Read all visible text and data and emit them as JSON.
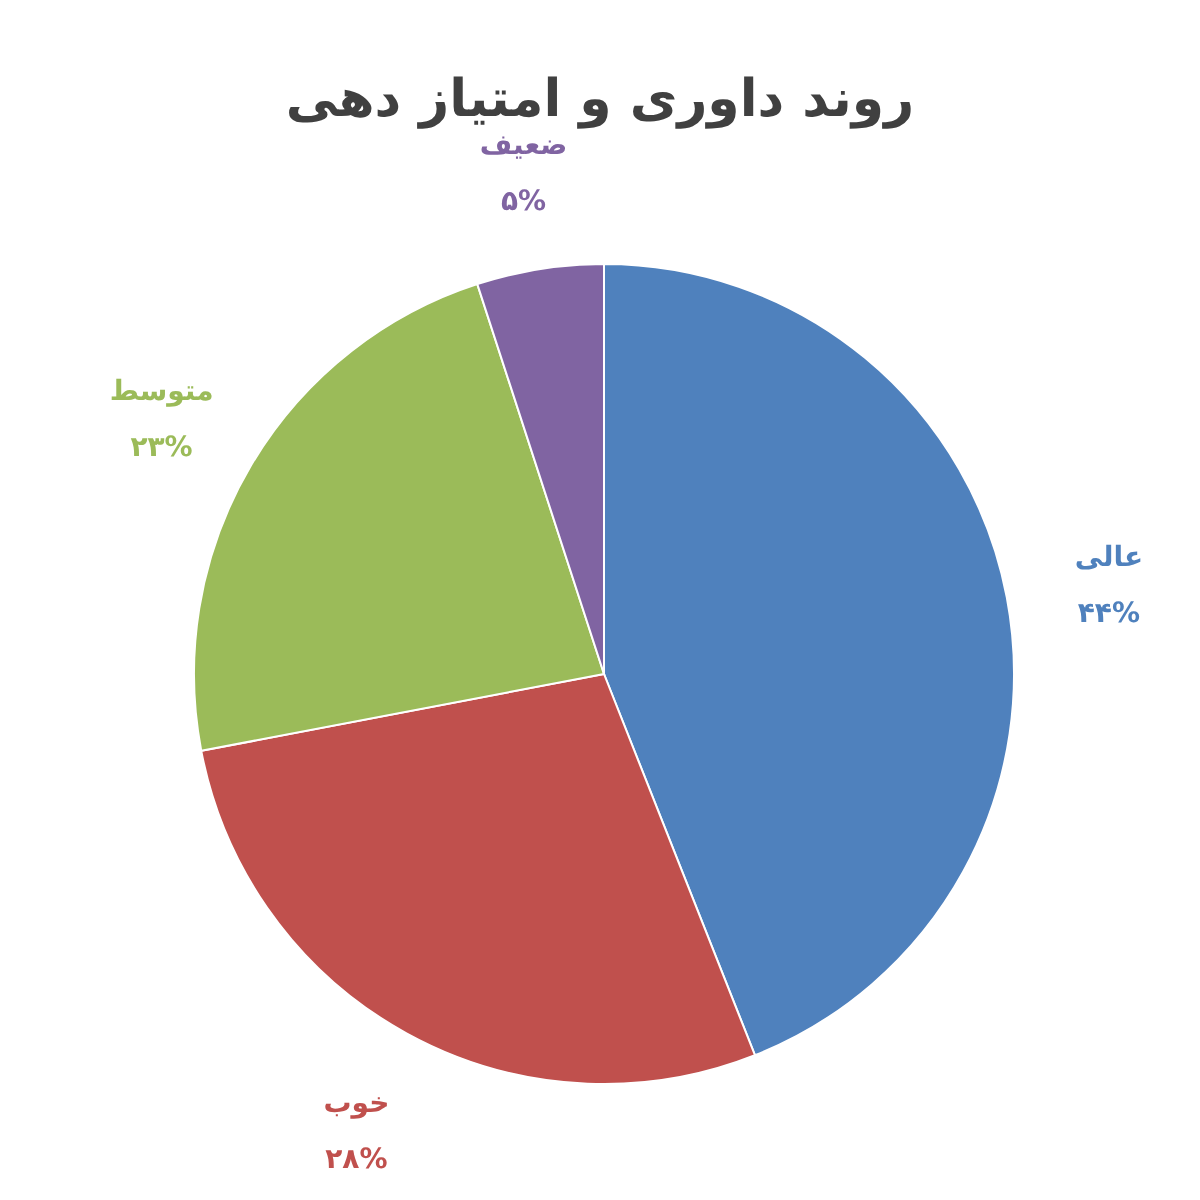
{
  "chart_data": {
    "type": "pie",
    "title": "روند داوری و امتیاز دهی",
    "categories": [
      "عالی",
      "خوب",
      "متوسط",
      "ضعیف"
    ],
    "values": [
      44,
      28,
      23,
      5
    ],
    "value_labels": [
      "۴۴%",
      "۲۸%",
      "۲۳%",
      "۵%"
    ],
    "colors": [
      "#4f81bd",
      "#c0504d",
      "#9bbb59",
      "#8064a2"
    ]
  }
}
